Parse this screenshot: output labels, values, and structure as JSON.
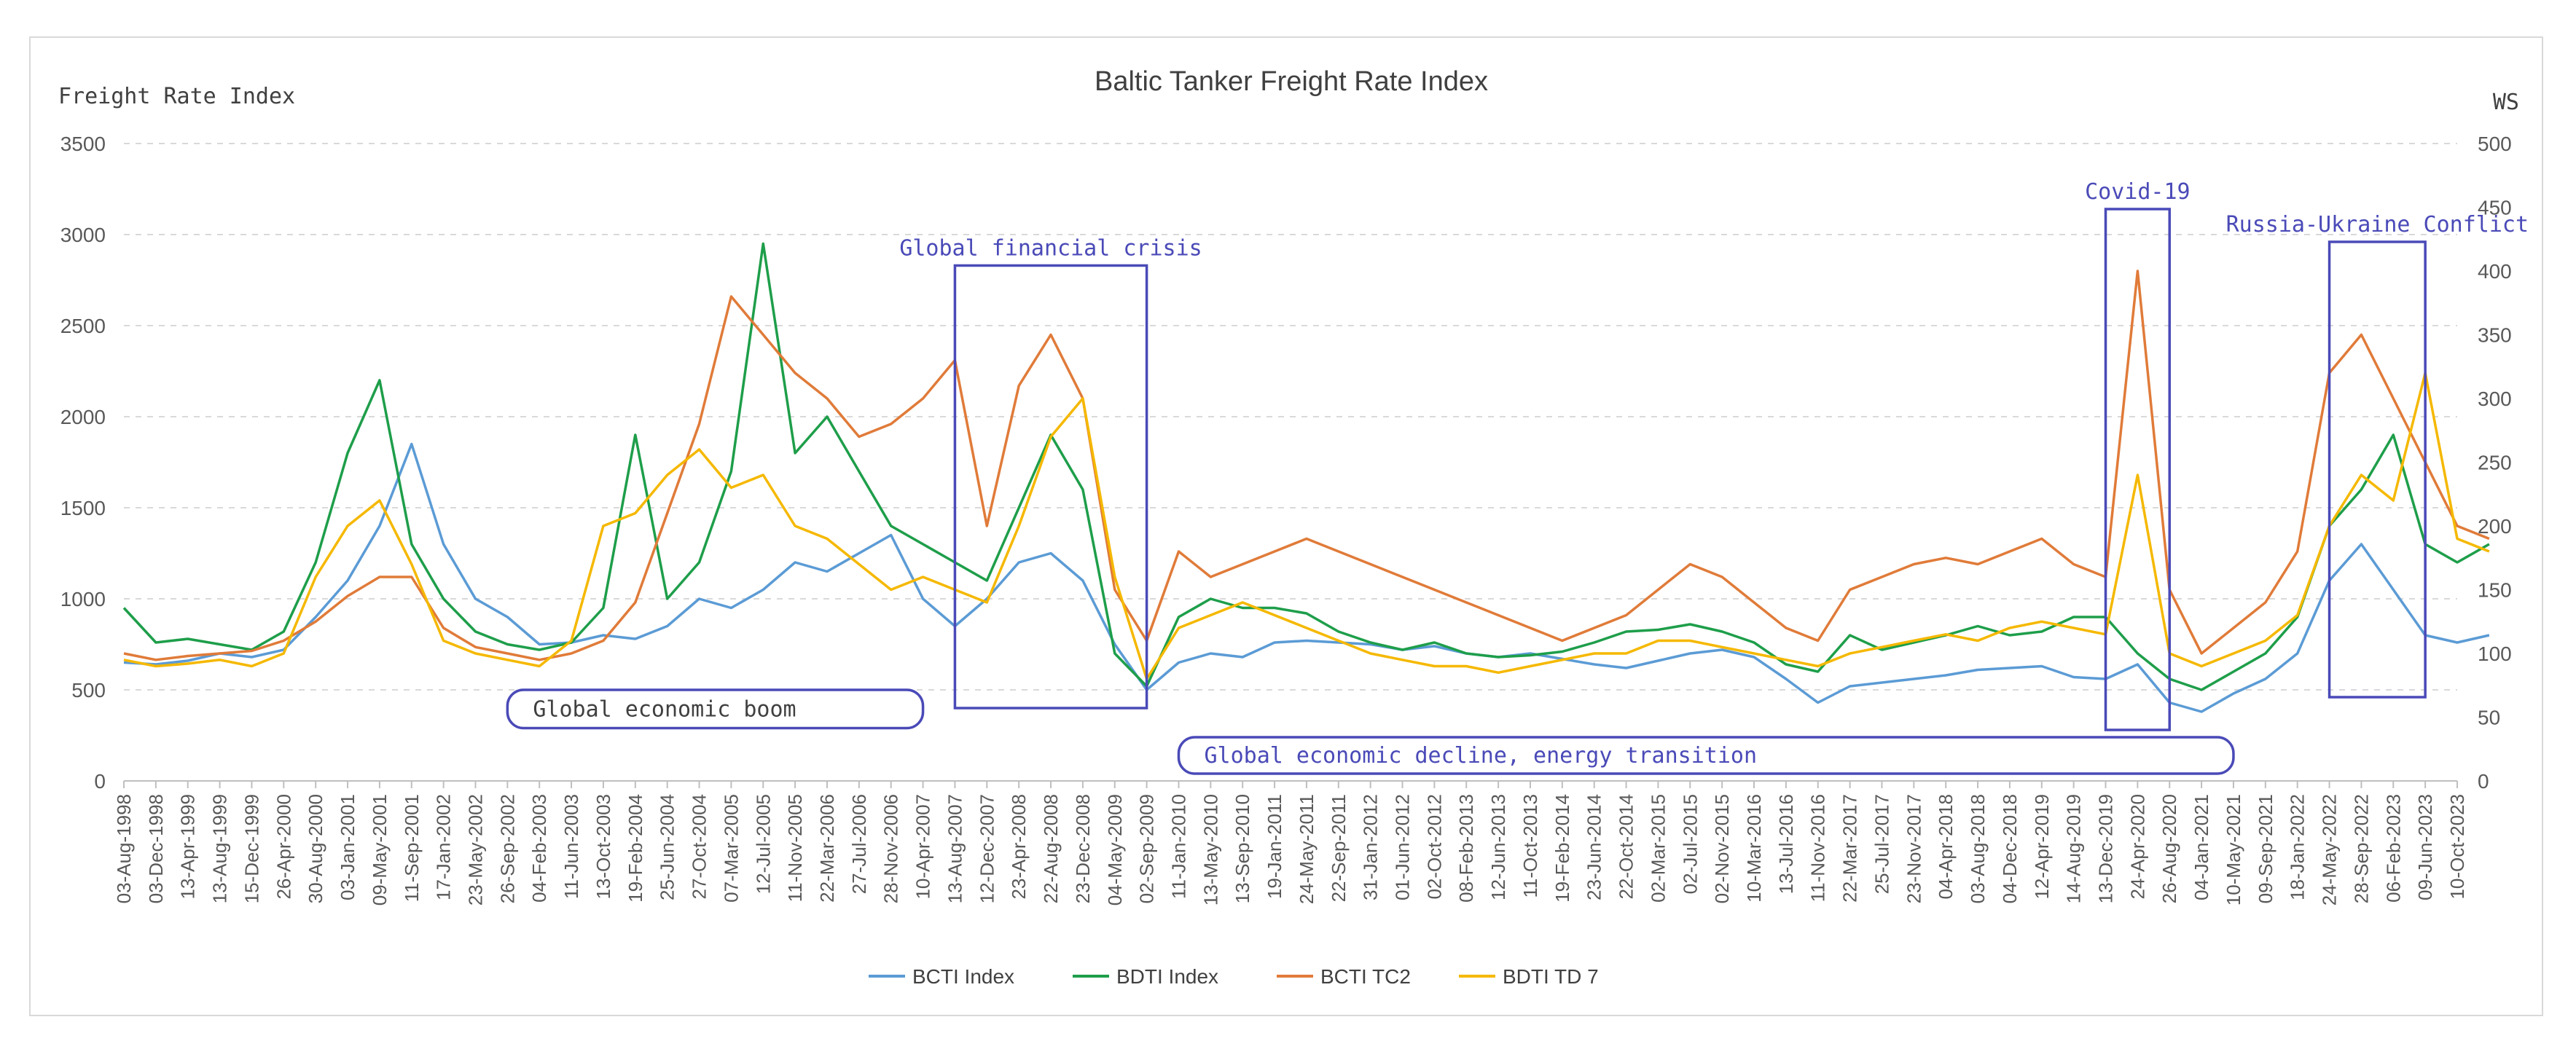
{
  "chart_data": {
    "type": "line",
    "title": "Baltic Tanker Freight Rate Index",
    "ylabel": "Freight Rate Index",
    "y2label": "WS",
    "ylim": [
      0,
      3500
    ],
    "y2lim": [
      0,
      500
    ],
    "yticks": [
      0,
      500,
      1000,
      1500,
      2000,
      2500,
      3000,
      3500
    ],
    "y2ticks": [
      0,
      50,
      100,
      150,
      200,
      250,
      300,
      350,
      400,
      450,
      500
    ],
    "grid": "horizontal dashed",
    "legend_position": "bottom",
    "x_ticks": [
      "03-Aug-1998",
      "03-Dec-1998",
      "13-Apr-1999",
      "13-Aug-1999",
      "15-Dec-1999",
      "26-Apr-2000",
      "30-Aug-2000",
      "03-Jan-2001",
      "09-May-2001",
      "11-Sep-2001",
      "17-Jan-2002",
      "23-May-2002",
      "26-Sep-2002",
      "04-Feb-2003",
      "11-Jun-2003",
      "13-Oct-2003",
      "19-Feb-2004",
      "25-Jun-2004",
      "27-Oct-2004",
      "07-Mar-2005",
      "12-Jul-2005",
      "11-Nov-2005",
      "22-Mar-2006",
      "27-Jul-2006",
      "28-Nov-2006",
      "10-Apr-2007",
      "13-Aug-2007",
      "12-Dec-2007",
      "23-Apr-2008",
      "22-Aug-2008",
      "23-Dec-2008",
      "04-May-2009",
      "02-Sep-2009",
      "11-Jan-2010",
      "13-May-2010",
      "13-Sep-2010",
      "19-Jan-2011",
      "24-May-2011",
      "22-Sep-2011",
      "31-Jan-2012",
      "01-Jun-2012",
      "02-Oct-2012",
      "08-Feb-2013",
      "12-Jun-2013",
      "11-Oct-2013",
      "19-Feb-2014",
      "23-Jun-2014",
      "22-Oct-2014",
      "02-Mar-2015",
      "02-Jul-2015",
      "02-Nov-2015",
      "10-Mar-2016",
      "13-Jul-2016",
      "11-Nov-2016",
      "22-Mar-2017",
      "25-Jul-2017",
      "23-Nov-2017",
      "04-Apr-2018",
      "03-Aug-2018",
      "04-Dec-2018",
      "12-Apr-2019",
      "14-Aug-2019",
      "13-Dec-2019",
      "24-Apr-2020",
      "26-Aug-2020",
      "04-Jan-2021",
      "10-May-2021",
      "09-Sep-2021",
      "18-Jan-2022",
      "24-May-2022",
      "28-Sep-2022",
      "06-Feb-2023",
      "09-Jun-2023",
      "10-Oct-2023"
    ],
    "series": [
      {
        "name": "BCTI Index",
        "axis": "left",
        "color": "#5b9bd5",
        "values": [
          650,
          640,
          660,
          700,
          680,
          720,
          900,
          1100,
          1400,
          1850,
          1300,
          1000,
          900,
          750,
          760,
          800,
          780,
          850,
          1000,
          950,
          1050,
          1200,
          1150,
          1250,
          1350,
          1000,
          850,
          1000,
          1200,
          1250,
          1100,
          750,
          500,
          650,
          700,
          680,
          760,
          770,
          760,
          750,
          720,
          740,
          700,
          680,
          700,
          670,
          640,
          620,
          660,
          700,
          720,
          680,
          560,
          430,
          520,
          540,
          560,
          580,
          610,
          620,
          630,
          570,
          560,
          640,
          430,
          380,
          480,
          560,
          700,
          1100,
          1300,
          1050,
          800,
          760,
          800
        ]
      },
      {
        "name": "BDTI Index",
        "axis": "left",
        "color": "#1e9e4a",
        "values": [
          950,
          760,
          780,
          750,
          720,
          820,
          1200,
          1800,
          2200,
          1300,
          1000,
          820,
          750,
          720,
          760,
          950,
          1900,
          1000,
          1200,
          1700,
          2950,
          1800,
          2000,
          1700,
          1400,
          1300,
          1200,
          1100,
          1500,
          1900,
          1600,
          700,
          520,
          900,
          1000,
          950,
          950,
          920,
          820,
          760,
          720,
          760,
          700,
          680,
          690,
          710,
          760,
          820,
          830,
          860,
          820,
          760,
          640,
          600,
          800,
          720,
          760,
          800,
          850,
          800,
          820,
          900,
          900,
          700,
          560,
          500,
          600,
          700,
          900,
          1400,
          1600,
          1900,
          1300,
          1200,
          1300
        ]
      },
      {
        "name": "BCTI TC2",
        "axis": "right",
        "color": "#e07b39",
        "values": [
          100,
          95,
          98,
          100,
          102,
          110,
          125,
          145,
          160,
          160,
          120,
          105,
          100,
          95,
          100,
          110,
          140,
          210,
          280,
          380,
          350,
          320,
          300,
          270,
          280,
          300,
          330,
          200,
          310,
          350,
          300,
          150,
          110,
          180,
          160,
          170,
          180,
          190,
          180,
          170,
          160,
          150,
          140,
          130,
          120,
          110,
          120,
          130,
          150,
          170,
          160,
          140,
          120,
          110,
          150,
          160,
          170,
          175,
          170,
          180,
          190,
          170,
          160,
          400,
          150,
          100,
          120,
          140,
          180,
          320,
          350,
          300,
          250,
          200,
          190
        ]
      },
      {
        "name": "BDTI TD 7",
        "axis": "right",
        "color": "#f5b800",
        "values": [
          95,
          90,
          92,
          95,
          90,
          100,
          160,
          200,
          220,
          170,
          110,
          100,
          95,
          90,
          110,
          200,
          210,
          240,
          260,
          230,
          240,
          200,
          190,
          170,
          150,
          160,
          150,
          140,
          200,
          270,
          300,
          160,
          80,
          120,
          130,
          140,
          130,
          120,
          110,
          100,
          95,
          90,
          90,
          85,
          90,
          95,
          100,
          100,
          110,
          110,
          105,
          100,
          95,
          90,
          100,
          105,
          110,
          115,
          110,
          120,
          125,
          120,
          115,
          240,
          100,
          90,
          100,
          110,
          130,
          200,
          240,
          220,
          320,
          190,
          180
        ]
      }
    ],
    "annotations": [
      {
        "label": "Global financial crisis",
        "x_from": "13-Aug-2007",
        "x_to": "02-Sep-2009",
        "y_from": 400,
        "y_to": 2830,
        "style": "box"
      },
      {
        "label": "Covid-19",
        "x_from": "13-Dec-2019",
        "x_to": "26-Aug-2020",
        "y_from": 280,
        "y_to": 3140,
        "style": "box"
      },
      {
        "label": "Russia-Ukraine Conflict",
        "x_from": "24-May-2022",
        "x_to": "09-Jun-2023",
        "y_from": 460,
        "y_to": 2960,
        "style": "box"
      },
      {
        "label": "Global economic boom",
        "x_from": "26-Sep-2002",
        "x_to": "10-Apr-2007",
        "y_from": 290,
        "y_to": 500,
        "style": "rounded"
      },
      {
        "label": "Global economic decline, energy transition",
        "x_from": "11-Jan-2010",
        "x_to": "10-May-2021",
        "y_from": 40,
        "y_to": 240,
        "style": "rounded"
      }
    ]
  },
  "colors": {
    "annotation": "#4a4ab8",
    "grid": "#d9d9d9",
    "axis_text": "#595959"
  }
}
